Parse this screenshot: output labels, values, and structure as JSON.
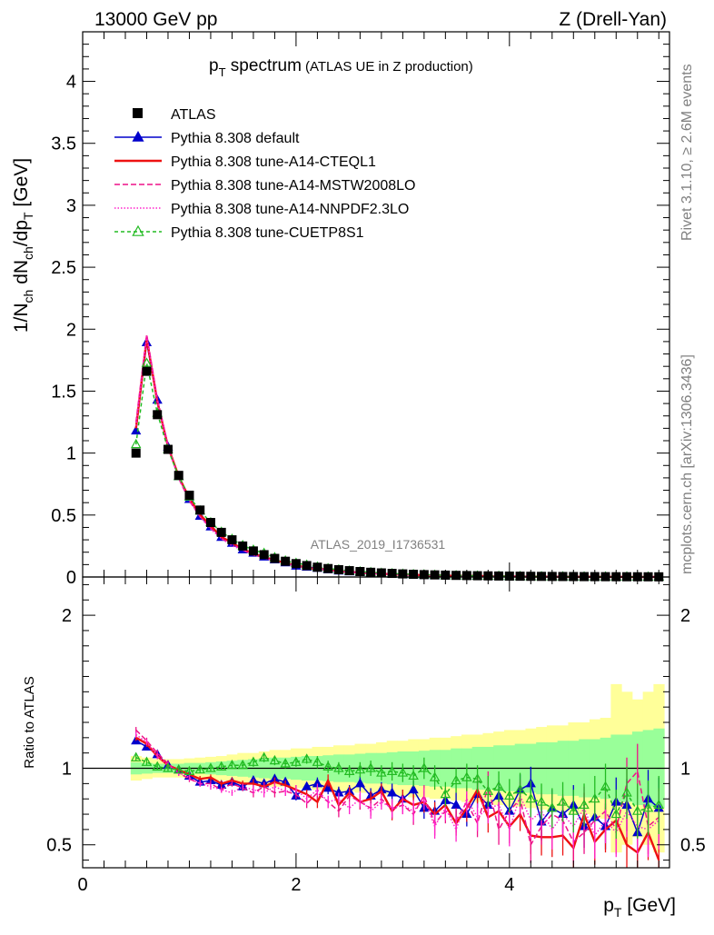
{
  "header": {
    "left": "13000 GeV pp",
    "right": "Z (Drell-Yan)"
  },
  "side_text": {
    "rivet": "Rivet 3.1.10, ≥ 2.6M events",
    "mcplots": "mcplots.cern.ch [arXiv:1306.3436]"
  },
  "plot_title": {
    "main": "p",
    "main_sub": "T",
    "main_rest": " spectrum",
    "extra": "(ATLAS UE in Z production)"
  },
  "analysis_label": "ATLAS_2019_I1736531",
  "colors": {
    "atlas": "#000000",
    "default": "#0000cc",
    "cteql1": "#ee1111",
    "mstw": "#ee1188",
    "nnpdf": "#ff22cc",
    "cuetp": "#22bb22",
    "band_yellow": "#ffff99",
    "band_green": "#99ff99"
  },
  "legend": [
    {
      "key": "atlas",
      "label": "ATLAS"
    },
    {
      "key": "default",
      "label": "Pythia 8.308 default"
    },
    {
      "key": "cteql1",
      "label": "Pythia 8.308 tune-A14-CTEQL1"
    },
    {
      "key": "mstw",
      "label": "Pythia 8.308 tune-A14-MSTW2008LO"
    },
    {
      "key": "nnpdf",
      "label": "Pythia 8.308 tune-A14-NNPDF2.3LO"
    },
    {
      "key": "cuetp",
      "label": "Pythia 8.308 tune-CUETP8S1"
    }
  ],
  "axes": {
    "ylabel_main": "1/N_ch dN_ch/dp_T [GeV]",
    "ylabel_ratio": "Ratio to ATLAS",
    "xlabel": "p_T [GeV]",
    "main_ticks": [
      "0",
      "0.5",
      "1",
      "1.5",
      "2",
      "2.5",
      "3",
      "3.5",
      "4"
    ],
    "ratio_ticks": [
      "0.5",
      "1",
      "2"
    ],
    "x_ticks": [
      "0",
      "2",
      "4"
    ]
  },
  "chart_data": {
    "type": "scatter",
    "xlim": [
      0,
      5.5
    ],
    "ylim_main": [
      0,
      4.4
    ],
    "ylim_ratio": [
      0.35,
      2.25
    ],
    "x": [
      0.5,
      0.6,
      0.7,
      0.8,
      0.9,
      1.0,
      1.1,
      1.2,
      1.3,
      1.4,
      1.5,
      1.6,
      1.7,
      1.8,
      1.9,
      2.0,
      2.1,
      2.2,
      2.3,
      2.4,
      2.5,
      2.6,
      2.7,
      2.8,
      2.9,
      3.0,
      3.1,
      3.2,
      3.3,
      3.4,
      3.5,
      3.6,
      3.7,
      3.8,
      3.9,
      4.0,
      4.1,
      4.2,
      4.3,
      4.4,
      4.5,
      4.6,
      4.7,
      4.8,
      4.9,
      5.0,
      5.1,
      5.2,
      5.3,
      5.4
    ],
    "atlas": [
      1.0,
      1.66,
      1.31,
      1.03,
      0.82,
      0.66,
      0.54,
      0.44,
      0.36,
      0.3,
      0.25,
      0.21,
      0.18,
      0.15,
      0.127,
      0.108,
      0.092,
      0.079,
      0.068,
      0.059,
      0.051,
      0.044,
      0.038,
      0.033,
      0.029,
      0.025,
      0.022,
      0.019,
      0.017,
      0.015,
      0.013,
      0.0115,
      0.0102,
      0.009,
      0.008,
      0.0071,
      0.0063,
      0.0056,
      0.005,
      0.0044,
      0.0039,
      0.0035,
      0.0031,
      0.0028,
      0.0025,
      0.0022,
      0.002,
      0.0018,
      0.0016,
      0.0014
    ],
    "band_green": [
      0.04,
      0.035,
      0.03,
      0.03,
      0.03,
      0.035,
      0.035,
      0.04,
      0.045,
      0.05,
      0.055,
      0.06,
      0.065,
      0.07,
      0.07,
      0.075,
      0.08,
      0.08,
      0.085,
      0.09,
      0.09,
      0.095,
      0.1,
      0.1,
      0.105,
      0.11,
      0.11,
      0.115,
      0.12,
      0.12,
      0.13,
      0.13,
      0.14,
      0.14,
      0.15,
      0.15,
      0.16,
      0.16,
      0.17,
      0.17,
      0.18,
      0.18,
      0.19,
      0.19,
      0.2,
      0.22,
      0.22,
      0.24,
      0.25,
      0.26
    ],
    "band_yellow": [
      0.08,
      0.07,
      0.06,
      0.06,
      0.06,
      0.065,
      0.07,
      0.075,
      0.08,
      0.09,
      0.1,
      0.1,
      0.11,
      0.12,
      0.12,
      0.13,
      0.13,
      0.14,
      0.14,
      0.15,
      0.15,
      0.16,
      0.16,
      0.17,
      0.18,
      0.18,
      0.19,
      0.19,
      0.2,
      0.2,
      0.21,
      0.22,
      0.22,
      0.23,
      0.24,
      0.25,
      0.25,
      0.26,
      0.27,
      0.28,
      0.28,
      0.3,
      0.3,
      0.32,
      0.33,
      0.55,
      0.5,
      0.45,
      0.5,
      0.55
    ],
    "series": [
      {
        "key": "default",
        "label_index": 1,
        "dash": "",
        "marker": "tri-fill",
        "ratio": [
          1.18,
          1.14,
          1.09,
          1.02,
          0.99,
          0.95,
          0.91,
          0.92,
          0.89,
          0.91,
          0.88,
          0.92,
          0.9,
          0.93,
          0.91,
          0.82,
          0.88,
          0.9,
          0.87,
          0.84,
          0.85,
          0.9,
          0.82,
          0.86,
          0.84,
          0.8,
          0.86,
          0.74,
          0.72,
          0.79,
          0.76,
          0.7,
          0.83,
          0.76,
          0.82,
          0.72,
          0.86,
          0.9,
          0.65,
          0.74,
          0.7,
          0.76,
          0.62,
          0.68,
          0.62,
          0.78,
          0.76,
          0.58,
          0.8,
          0.74
        ],
        "err": [
          0.02,
          0.02,
          0.02,
          0.02,
          0.02,
          0.02,
          0.02,
          0.02,
          0.02,
          0.02,
          0.02,
          0.02,
          0.03,
          0.03,
          0.03,
          0.03,
          0.03,
          0.04,
          0.04,
          0.04,
          0.04,
          0.05,
          0.05,
          0.05,
          0.06,
          0.06,
          0.06,
          0.07,
          0.07,
          0.08,
          0.08,
          0.08,
          0.09,
          0.09,
          0.1,
          0.1,
          0.1,
          0.11,
          0.12,
          0.12,
          0.12,
          0.13,
          0.14,
          0.14,
          0.15,
          0.16,
          0.17,
          0.18,
          0.19,
          0.2
        ]
      },
      {
        "key": "cteql1",
        "label_index": 2,
        "dash": "",
        "marker": "none",
        "ratio": [
          1.2,
          1.16,
          1.08,
          1.02,
          0.99,
          0.96,
          0.93,
          0.94,
          0.9,
          0.92,
          0.9,
          0.9,
          0.88,
          0.91,
          0.89,
          0.86,
          0.83,
          0.78,
          0.92,
          0.76,
          0.84,
          0.78,
          0.8,
          0.85,
          0.72,
          0.8,
          0.76,
          0.78,
          0.7,
          0.76,
          0.64,
          0.74,
          0.86,
          0.68,
          0.72,
          0.62,
          0.7,
          0.56,
          0.55,
          0.55,
          0.56,
          0.48,
          0.7,
          0.52,
          0.6,
          0.66,
          0.5,
          0.45,
          0.58,
          0.4
        ],
        "err": [
          0.02,
          0.02,
          0.02,
          0.02,
          0.02,
          0.02,
          0.02,
          0.02,
          0.02,
          0.02,
          0.02,
          0.03,
          0.03,
          0.03,
          0.03,
          0.03,
          0.03,
          0.04,
          0.04,
          0.04,
          0.04,
          0.05,
          0.05,
          0.05,
          0.06,
          0.06,
          0.07,
          0.07,
          0.08,
          0.08,
          0.08,
          0.09,
          0.09,
          0.1,
          0.1,
          0.11,
          0.11,
          0.12,
          0.12,
          0.13,
          0.13,
          0.14,
          0.14,
          0.15,
          0.15,
          0.16,
          0.17,
          0.18,
          0.18,
          0.19
        ]
      },
      {
        "key": "mstw",
        "label_index": 3,
        "dash": "6,3",
        "marker": "none",
        "ratio": [
          1.25,
          1.18,
          1.1,
          1.03,
          0.97,
          0.93,
          0.9,
          0.9,
          0.86,
          0.9,
          0.87,
          0.84,
          0.88,
          0.84,
          0.85,
          0.83,
          0.77,
          0.84,
          0.78,
          0.72,
          0.82,
          0.78,
          0.74,
          0.8,
          0.73,
          0.76,
          0.7,
          0.82,
          0.64,
          0.72,
          0.66,
          0.78,
          0.64,
          0.88,
          0.6,
          0.72,
          0.8,
          0.5,
          0.62,
          0.7,
          0.66,
          0.52,
          0.58,
          0.66,
          0.72,
          0.6,
          0.9,
          0.98,
          0.62,
          0.68
        ],
        "err": [
          0.02,
          0.02,
          0.02,
          0.02,
          0.02,
          0.02,
          0.02,
          0.02,
          0.02,
          0.02,
          0.02,
          0.03,
          0.03,
          0.03,
          0.03,
          0.03,
          0.03,
          0.04,
          0.04,
          0.04,
          0.04,
          0.05,
          0.05,
          0.05,
          0.06,
          0.06,
          0.07,
          0.07,
          0.08,
          0.08,
          0.08,
          0.09,
          0.09,
          0.1,
          0.1,
          0.11,
          0.11,
          0.12,
          0.12,
          0.13,
          0.13,
          0.14,
          0.14,
          0.15,
          0.15,
          0.16,
          0.17,
          0.18,
          0.18,
          0.19
        ]
      },
      {
        "key": "nnpdf",
        "label_index": 4,
        "dash": "1.5,2",
        "marker": "none",
        "ratio": [
          1.22,
          1.17,
          1.08,
          1.02,
          0.97,
          0.94,
          0.9,
          0.88,
          0.86,
          0.84,
          0.88,
          0.86,
          0.84,
          0.88,
          0.85,
          0.86,
          0.8,
          0.86,
          0.78,
          0.8,
          0.74,
          0.8,
          0.72,
          0.78,
          0.74,
          0.76,
          0.72,
          0.8,
          0.62,
          0.74,
          0.6,
          0.8,
          0.68,
          0.74,
          0.76,
          0.6,
          0.82,
          0.66,
          0.72,
          0.6,
          0.7,
          0.62,
          0.74,
          0.56,
          0.66,
          0.58,
          0.72,
          0.62,
          0.6,
          0.66
        ],
        "err": [
          0.02,
          0.02,
          0.02,
          0.02,
          0.02,
          0.02,
          0.02,
          0.02,
          0.02,
          0.02,
          0.02,
          0.03,
          0.03,
          0.03,
          0.03,
          0.03,
          0.03,
          0.04,
          0.04,
          0.04,
          0.04,
          0.05,
          0.05,
          0.05,
          0.06,
          0.06,
          0.07,
          0.07,
          0.08,
          0.08,
          0.08,
          0.09,
          0.09,
          0.1,
          0.1,
          0.11,
          0.11,
          0.12,
          0.12,
          0.13,
          0.13,
          0.14,
          0.14,
          0.15,
          0.15,
          0.16,
          0.17,
          0.18,
          0.18,
          0.19
        ]
      },
      {
        "key": "cuetp",
        "label_index": 5,
        "dash": "4,3",
        "marker": "tri-open",
        "ratio": [
          1.07,
          1.04,
          1.01,
          1.0,
          0.99,
          0.98,
          0.99,
          1.0,
          1.01,
          1.02,
          1.02,
          1.04,
          1.07,
          1.05,
          1.03,
          1.04,
          1.06,
          1.04,
          1.01,
          1.0,
          0.98,
          0.99,
          1.0,
          0.97,
          0.98,
          0.97,
          0.95,
          1.0,
          0.94,
          0.83,
          0.92,
          0.94,
          0.93,
          0.85,
          0.88,
          0.82,
          0.86,
          0.8,
          0.78,
          0.74,
          0.78,
          0.72,
          0.76,
          0.8,
          0.88,
          0.7,
          0.84,
          0.72,
          0.74,
          0.76
        ],
        "err": [
          0.02,
          0.02,
          0.02,
          0.02,
          0.02,
          0.02,
          0.02,
          0.02,
          0.02,
          0.02,
          0.02,
          0.03,
          0.03,
          0.03,
          0.03,
          0.03,
          0.03,
          0.04,
          0.04,
          0.04,
          0.04,
          0.05,
          0.05,
          0.05,
          0.06,
          0.06,
          0.07,
          0.07,
          0.08,
          0.08,
          0.08,
          0.09,
          0.09,
          0.1,
          0.1,
          0.11,
          0.11,
          0.12,
          0.12,
          0.13,
          0.13,
          0.14,
          0.14,
          0.15,
          0.15,
          0.16,
          0.17,
          0.18,
          0.18,
          0.19
        ]
      }
    ]
  }
}
